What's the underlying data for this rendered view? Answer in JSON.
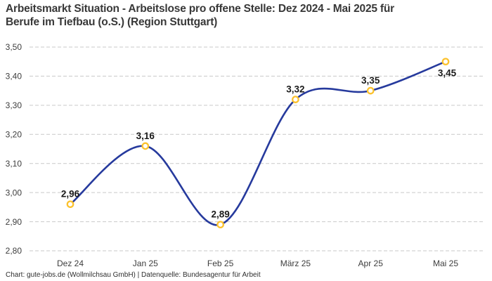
{
  "title": {
    "line1": "Arbeitsmarkt Situation - Arbeitslose pro offene Stelle: Dez 2024 - Mai 2025 für",
    "line2": "Berufe im Tiefbau (o.S.) (Region Stuttgart)"
  },
  "footer": "Chart: gute-jobs.de (Wollmilchsau GmbH) | Datenquelle: Bundesagentur für Arbeit",
  "colors": {
    "background": "#ffffff",
    "line": "#263a9d",
    "marker_ring": "#fcc22d",
    "marker_fill": "#ffffff",
    "grid": "#c9c9c9",
    "title_text": "#383838",
    "axis_text": "#3d3d3d",
    "value_text": "#1b1b1b",
    "footer_text": "#2e2e2e"
  },
  "chart_data": {
    "type": "line",
    "title": "Arbeitsmarkt Situation - Arbeitslose pro offene Stelle: Dez 2024 - Mai 2025 für Berufe im Tiefbau (o.S.) (Region Stuttgart)",
    "categories": [
      "Dez 24",
      "Jan 25",
      "Feb 25",
      "März 25",
      "Apr 25",
      "Mai 25"
    ],
    "values": [
      2.96,
      3.16,
      2.89,
      3.32,
      3.35,
      3.45
    ],
    "value_labels": [
      "2,96",
      "3,16",
      "2,89",
      "3,32",
      "3,35",
      "3,45"
    ],
    "y_tick_labels": [
      "2,80",
      "2,90",
      "3,00",
      "3,10",
      "3,20",
      "3,30",
      "3,40",
      "3,50"
    ],
    "y_tick_values": [
      2.8,
      2.9,
      3.0,
      3.1,
      3.2,
      3.3,
      3.4,
      3.5
    ],
    "ylim": [
      2.8,
      3.5
    ],
    "xlabel": "",
    "ylabel": "",
    "grid": "horizontal-dashed",
    "legend": "none",
    "curve": "smooth"
  }
}
